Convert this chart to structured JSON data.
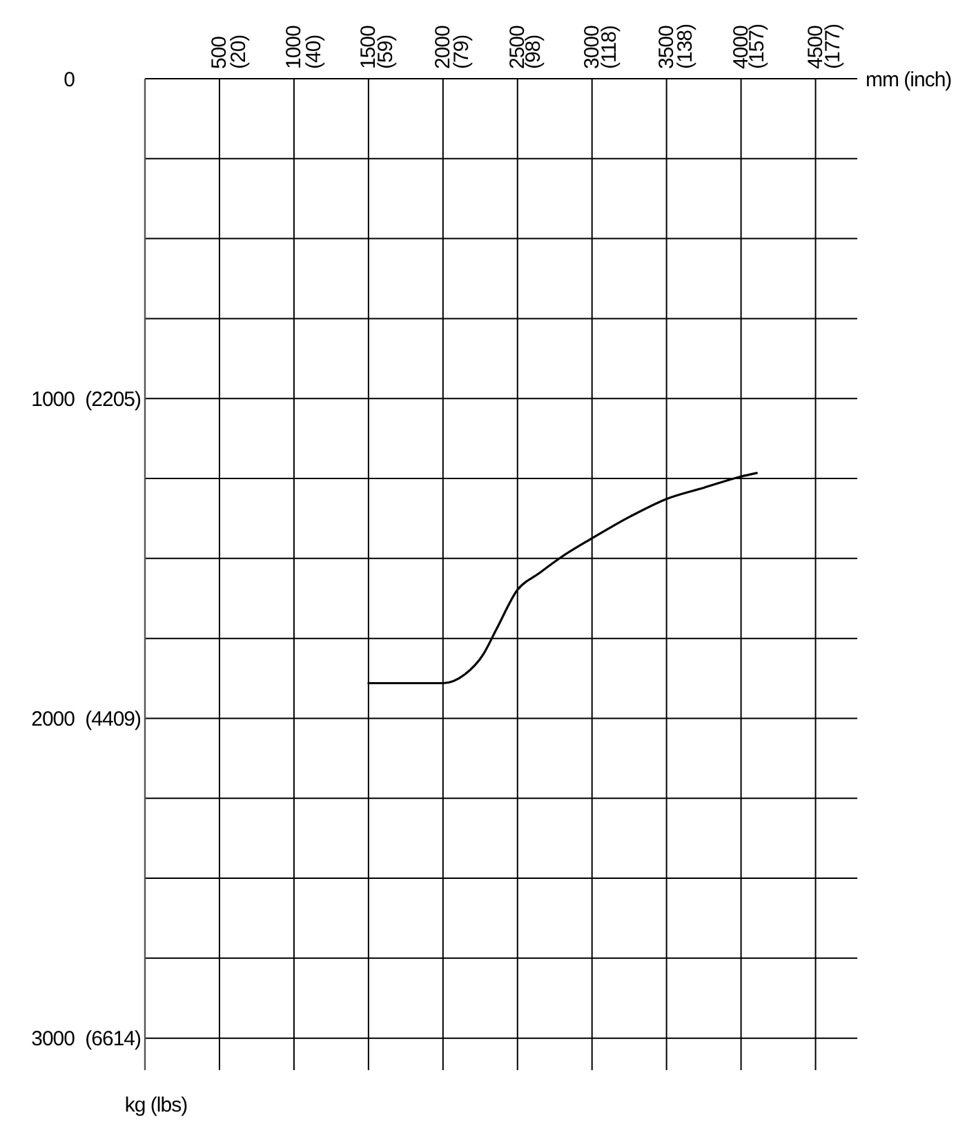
{
  "chart_data": {
    "type": "line",
    "xlabel": "mm (inch)",
    "annotations": [
      "kg (lbs)"
    ],
    "xlim": [
      0,
      4780
    ],
    "ylim": [
      3100,
      0
    ],
    "x2lim": [
      -4.7,
      183.4
    ],
    "y2lim": [
      6834.3,
      0
    ],
    "xticks": [
      500,
      1000,
      1500,
      2000,
      2500,
      3000,
      3500,
      4000,
      4500
    ],
    "x2ticks": [
      {
        "value": 20,
        "label": "(20)"
      },
      {
        "value": 40,
        "label": "(40)"
      },
      {
        "value": 59,
        "label": "(59)"
      },
      {
        "value": 79,
        "label": "(79)"
      },
      {
        "value": 98,
        "label": "(98)"
      },
      {
        "value": 118,
        "label": "(118)"
      },
      {
        "value": 138,
        "label": "(138)"
      },
      {
        "value": 157,
        "label": "(157)"
      },
      {
        "value": 177,
        "label": "(177)"
      }
    ],
    "yticks": [
      0,
      {
        "value": 250,
        "label": null
      },
      {
        "value": 500,
        "label": null
      },
      {
        "value": 750,
        "label": null
      },
      1000,
      {
        "value": 1250,
        "label": null
      },
      {
        "value": 1500,
        "label": null
      },
      {
        "value": 1750,
        "label": null
      },
      2000,
      {
        "value": 2250,
        "label": null
      },
      {
        "value": 2500,
        "label": null
      },
      {
        "value": 2750,
        "label": null
      },
      3000
    ],
    "y2ticks": [
      {
        "value": 2205,
        "label": "(2205)"
      },
      {
        "value": 4409,
        "label": "(4409)"
      },
      {
        "value": 6614,
        "label": "(6614)"
      }
    ],
    "grid": true,
    "series": [
      {
        "color": "#000000",
        "x": [
          1500,
          2000,
          2145,
          2270,
          2360,
          2500,
          2640,
          2790,
          3000,
          3260,
          3500,
          3750,
          4000,
          4105
        ],
        "values": [
          1890,
          1890,
          1863,
          1800,
          1720,
          1598,
          1548,
          1497,
          1437,
          1368,
          1314,
          1279,
          1244,
          1233
        ]
      }
    ]
  }
}
